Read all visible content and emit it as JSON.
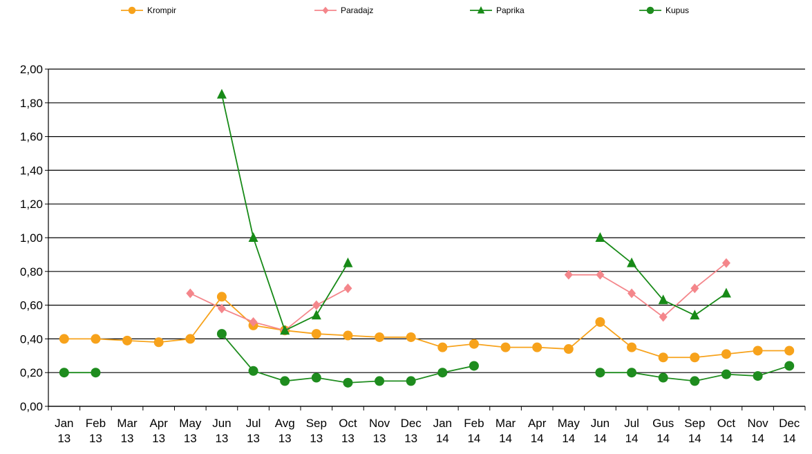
{
  "chart_data": {
    "type": "line",
    "categories": [
      "Jan 13",
      "Feb 13",
      "Mar 13",
      "Apr 13",
      "May 13",
      "Jun 13",
      "Jul 13",
      "Avg 13",
      "Sep 13",
      "Oct 13",
      "Nov 13",
      "Dec 13",
      "Jan 14",
      "Feb 14",
      "Mar 14",
      "Apr 14",
      "May 14",
      "Jun 14",
      "Jul 14",
      "Gus 14",
      "Sep 14",
      "Oct 14",
      "Nov 14",
      "Dec 14"
    ],
    "series": [
      {
        "name": "Krompir",
        "color": "#f7a21b",
        "marker": "circle",
        "values": [
          0.4,
          0.4,
          0.39,
          0.38,
          0.4,
          0.65,
          0.48,
          0.45,
          0.43,
          0.42,
          0.41,
          0.41,
          0.35,
          0.37,
          0.35,
          0.35,
          0.34,
          0.5,
          0.35,
          0.29,
          0.29,
          0.31,
          0.33,
          0.33
        ]
      },
      {
        "name": "Paradajz",
        "color": "#f4868b",
        "marker": "diamond",
        "values": [
          null,
          null,
          null,
          null,
          0.67,
          0.58,
          0.5,
          0.45,
          0.6,
          0.7,
          null,
          null,
          null,
          null,
          null,
          null,
          0.78,
          0.78,
          0.67,
          0.53,
          0.7,
          0.85,
          null,
          null
        ]
      },
      {
        "name": "Paprika",
        "color": "#178a17",
        "marker": "triangle",
        "values": [
          null,
          null,
          null,
          null,
          null,
          1.85,
          1.0,
          0.45,
          0.54,
          0.85,
          null,
          null,
          null,
          null,
          null,
          null,
          null,
          1.0,
          0.85,
          0.63,
          0.54,
          0.67,
          null,
          null
        ]
      },
      {
        "name": "Kupus",
        "color": "#1e8c1e",
        "marker": "circle",
        "values": [
          0.2,
          0.2,
          null,
          null,
          null,
          0.43,
          0.21,
          0.15,
          0.17,
          0.14,
          0.15,
          0.15,
          0.2,
          0.24,
          null,
          null,
          null,
          0.2,
          0.2,
          0.17,
          0.15,
          0.19,
          0.18,
          0.24
        ]
      }
    ],
    "ylim": [
      0,
      2
    ],
    "yticks": [
      {
        "value": 0,
        "label": "0,00"
      },
      {
        "value": 0.2,
        "label": "0,20"
      },
      {
        "value": 0.4,
        "label": "0,40"
      },
      {
        "value": 0.6,
        "label": "0,60"
      },
      {
        "value": 0.8,
        "label": "0,80"
      },
      {
        "value": 1.0,
        "label": "1,00"
      },
      {
        "value": 1.2,
        "label": "1,20"
      },
      {
        "value": 1.4,
        "label": "1,40"
      },
      {
        "value": 1.6,
        "label": "1,60"
      },
      {
        "value": 1.8,
        "label": "1,80"
      },
      {
        "value": 2.0,
        "label": "2,00"
      }
    ],
    "grid": true,
    "legend": "top"
  }
}
